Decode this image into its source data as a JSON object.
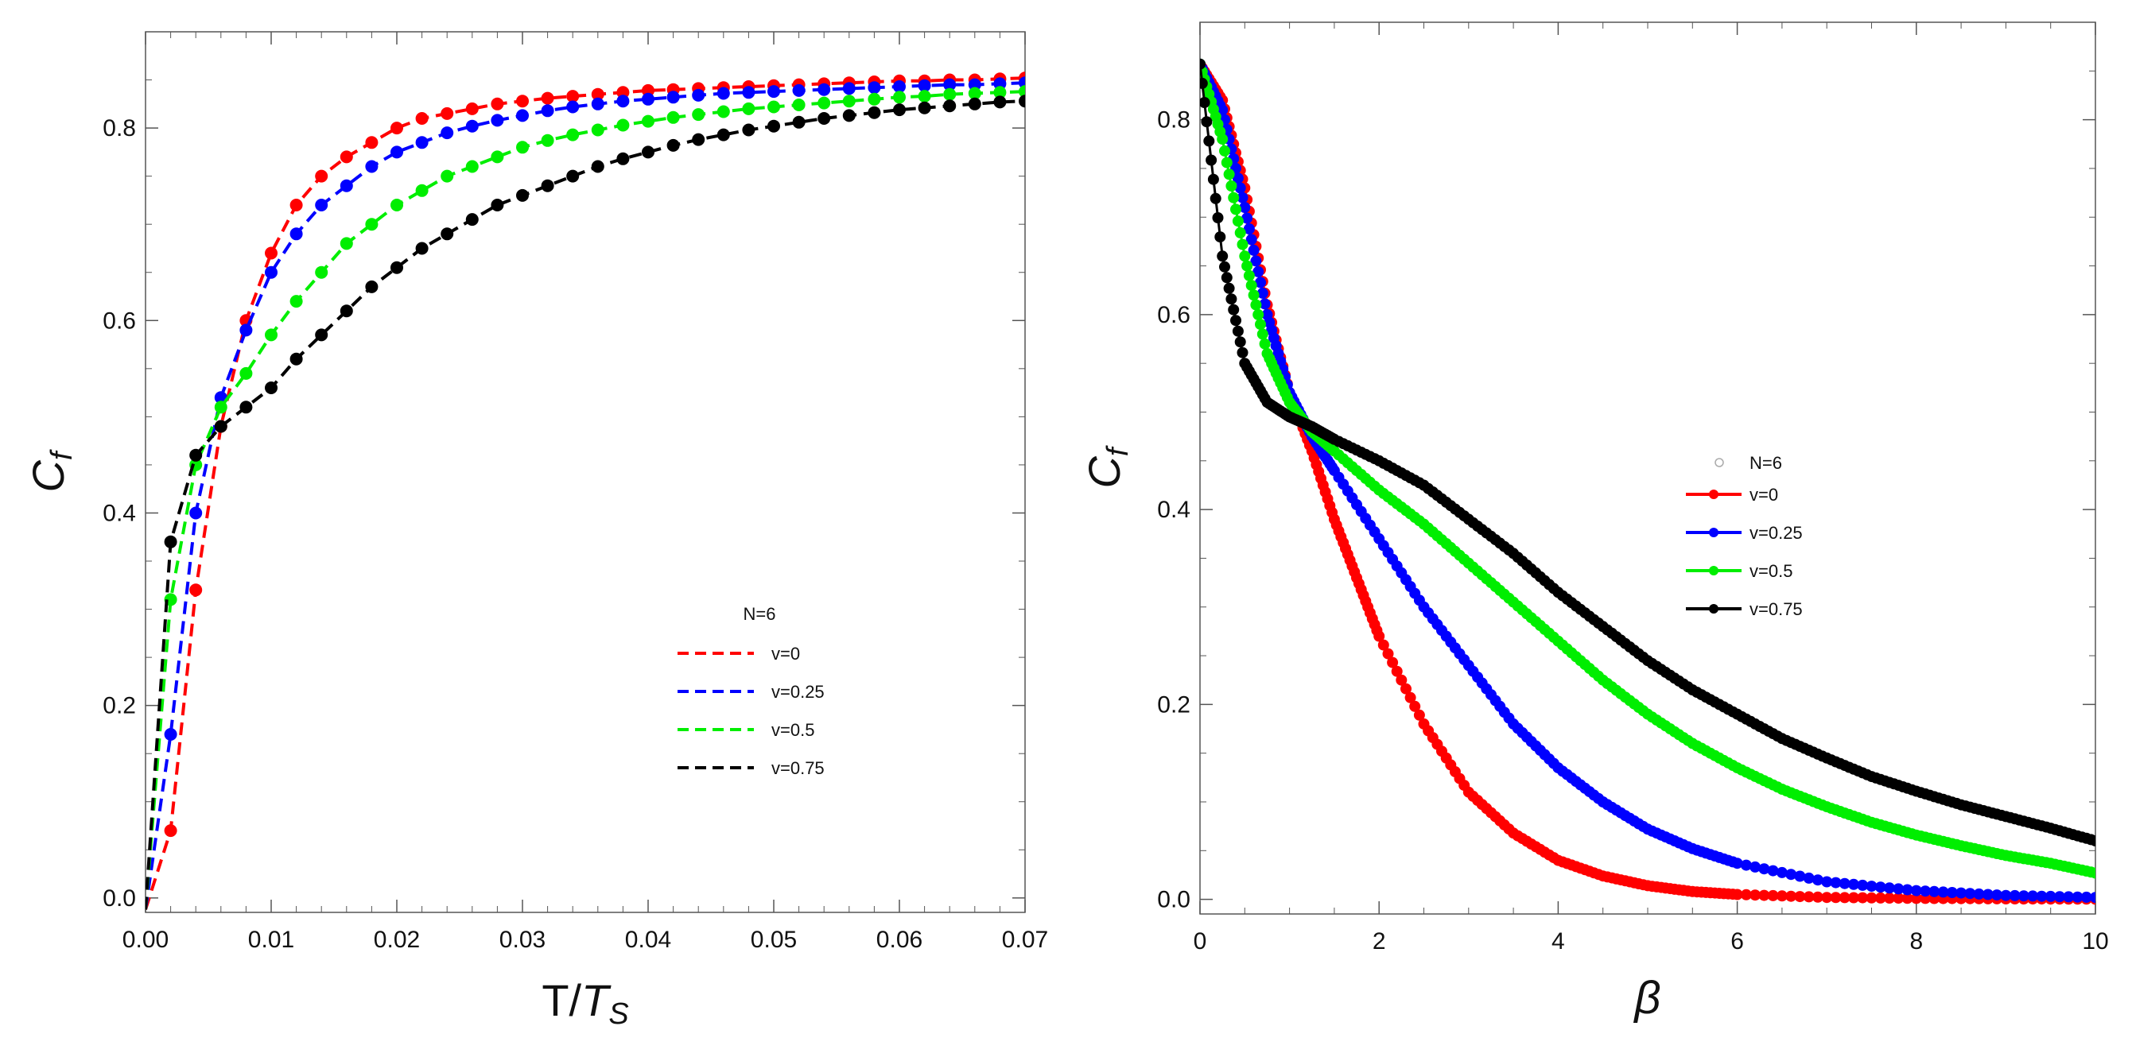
{
  "chart_data": [
    {
      "type": "line",
      "xlabel": "T/T_S",
      "ylabel": "C_f",
      "xlim": [
        0,
        0.07
      ],
      "ylim": [
        -0.015,
        0.9
      ],
      "xticks": [
        "0.00",
        "0.01",
        "0.02",
        "0.03",
        "0.04",
        "0.05",
        "0.06",
        "0.07"
      ],
      "yticks": [
        "0.0",
        "0.2",
        "0.4",
        "0.6",
        "0.8"
      ],
      "legend": {
        "position": "center-right",
        "title": "N=6",
        "entries": [
          "v=0",
          "v=0.25",
          "v=0.5",
          "v=0.75"
        ]
      },
      "line_style": "dashed with markers",
      "series": [
        {
          "name": "v=0",
          "color": "#ff0000",
          "x": [
            0.002,
            0.004,
            0.006,
            0.008,
            0.01,
            0.012,
            0.014,
            0.016,
            0.018,
            0.02,
            0.022,
            0.024,
            0.026,
            0.028,
            0.03,
            0.032,
            0.034,
            0.036,
            0.038,
            0.04,
            0.042,
            0.044,
            0.046,
            0.048,
            0.05,
            0.052,
            0.054,
            0.056,
            0.058,
            0.06,
            0.062,
            0.064,
            0.066,
            0.068,
            0.07
          ],
          "y": [
            0.07,
            0.32,
            0.49,
            0.6,
            0.67,
            0.72,
            0.75,
            0.77,
            0.785,
            0.8,
            0.81,
            0.815,
            0.82,
            0.825,
            0.828,
            0.831,
            0.833,
            0.835,
            0.837,
            0.839,
            0.84,
            0.841,
            0.842,
            0.843,
            0.844,
            0.845,
            0.846,
            0.847,
            0.848,
            0.849,
            0.849,
            0.85,
            0.85,
            0.851,
            0.852
          ]
        },
        {
          "name": "v=0.25",
          "color": "#0000ff",
          "x": [
            0.002,
            0.004,
            0.006,
            0.008,
            0.01,
            0.012,
            0.014,
            0.016,
            0.018,
            0.02,
            0.022,
            0.024,
            0.026,
            0.028,
            0.03,
            0.032,
            0.034,
            0.036,
            0.038,
            0.04,
            0.042,
            0.044,
            0.046,
            0.048,
            0.05,
            0.052,
            0.054,
            0.056,
            0.058,
            0.06,
            0.062,
            0.064,
            0.066,
            0.068,
            0.07
          ],
          "y": [
            0.17,
            0.4,
            0.52,
            0.59,
            0.65,
            0.69,
            0.72,
            0.74,
            0.76,
            0.775,
            0.785,
            0.795,
            0.802,
            0.808,
            0.813,
            0.818,
            0.822,
            0.825,
            0.828,
            0.83,
            0.832,
            0.834,
            0.836,
            0.837,
            0.838,
            0.839,
            0.84,
            0.841,
            0.842,
            0.843,
            0.844,
            0.845,
            0.845,
            0.846,
            0.847
          ]
        },
        {
          "name": "v=0.5",
          "color": "#00ee00",
          "x": [
            0.002,
            0.004,
            0.006,
            0.008,
            0.01,
            0.012,
            0.014,
            0.016,
            0.018,
            0.02,
            0.022,
            0.024,
            0.026,
            0.028,
            0.03,
            0.032,
            0.034,
            0.036,
            0.038,
            0.04,
            0.042,
            0.044,
            0.046,
            0.048,
            0.05,
            0.052,
            0.054,
            0.056,
            0.058,
            0.06,
            0.062,
            0.064,
            0.066,
            0.068,
            0.07
          ],
          "y": [
            0.31,
            0.45,
            0.51,
            0.545,
            0.585,
            0.62,
            0.65,
            0.68,
            0.7,
            0.72,
            0.735,
            0.75,
            0.76,
            0.77,
            0.78,
            0.787,
            0.793,
            0.798,
            0.803,
            0.807,
            0.811,
            0.814,
            0.817,
            0.82,
            0.822,
            0.824,
            0.826,
            0.828,
            0.83,
            0.832,
            0.833,
            0.835,
            0.836,
            0.837,
            0.838
          ]
        },
        {
          "name": "v=0.75",
          "color": "#000000",
          "x": [
            0.002,
            0.004,
            0.006,
            0.008,
            0.01,
            0.012,
            0.014,
            0.016,
            0.018,
            0.02,
            0.022,
            0.024,
            0.026,
            0.028,
            0.03,
            0.032,
            0.034,
            0.036,
            0.038,
            0.04,
            0.042,
            0.044,
            0.046,
            0.048,
            0.05,
            0.052,
            0.054,
            0.056,
            0.058,
            0.06,
            0.062,
            0.064,
            0.066,
            0.068,
            0.07
          ],
          "y": [
            0.37,
            0.46,
            0.49,
            0.51,
            0.53,
            0.56,
            0.585,
            0.61,
            0.635,
            0.655,
            0.675,
            0.69,
            0.705,
            0.72,
            0.73,
            0.74,
            0.75,
            0.76,
            0.768,
            0.775,
            0.782,
            0.788,
            0.793,
            0.798,
            0.802,
            0.806,
            0.81,
            0.813,
            0.816,
            0.819,
            0.821,
            0.823,
            0.825,
            0.827,
            0.828
          ]
        }
      ]
    },
    {
      "type": "line",
      "xlabel": "β",
      "ylabel": "C_f",
      "xlim": [
        0,
        10
      ],
      "ylim": [
        -0.015,
        0.9
      ],
      "xticks": [
        "0",
        "2",
        "4",
        "6",
        "8",
        "10"
      ],
      "yticks": [
        "0.0",
        "0.2",
        "0.4",
        "0.6",
        "0.8"
      ],
      "legend": {
        "position": "center-right",
        "title": "N=6",
        "entries": [
          "v=0",
          "v=0.25",
          "v=0.5",
          "v=0.75"
        ]
      },
      "line_style": "solid with dense markers",
      "series": [
        {
          "name": "v=0",
          "color": "#ff0000",
          "x": [
            0,
            0.25,
            0.5,
            0.75,
            1.0,
            1.25,
            1.5,
            1.75,
            2.0,
            2.5,
            3.0,
            3.5,
            4.0,
            4.5,
            5.0,
            5.5,
            6.0,
            7.0,
            8.0,
            9.0,
            10.0
          ],
          "y": [
            0.857,
            0.82,
            0.73,
            0.61,
            0.52,
            0.46,
            0.39,
            0.33,
            0.27,
            0.18,
            0.11,
            0.068,
            0.04,
            0.024,
            0.014,
            0.008,
            0.005,
            0.002,
            0.001,
            0.0005,
            0.0002
          ]
        },
        {
          "name": "v=0.25",
          "color": "#0000ff",
          "x": [
            0,
            0.25,
            0.5,
            0.75,
            1.0,
            1.25,
            1.5,
            2.0,
            2.5,
            3.0,
            3.5,
            4.0,
            4.5,
            5.0,
            5.5,
            6.0,
            7.0,
            8.0,
            9.0,
            10.0
          ],
          "y": [
            0.857,
            0.81,
            0.71,
            0.6,
            0.52,
            0.475,
            0.44,
            0.37,
            0.3,
            0.24,
            0.18,
            0.135,
            0.1,
            0.072,
            0.052,
            0.037,
            0.018,
            0.009,
            0.004,
            0.002
          ]
        },
        {
          "name": "v=0.5",
          "color": "#00ee00",
          "x": [
            0,
            0.25,
            0.5,
            0.75,
            1.0,
            1.25,
            1.5,
            2.0,
            2.5,
            3.0,
            3.5,
            4.0,
            4.5,
            5.0,
            5.5,
            6.0,
            6.5,
            7.0,
            7.5,
            8.0,
            8.5,
            9.0,
            9.5,
            10.0
          ],
          "y": [
            0.857,
            0.78,
            0.66,
            0.56,
            0.51,
            0.48,
            0.46,
            0.42,
            0.385,
            0.345,
            0.305,
            0.265,
            0.225,
            0.19,
            0.16,
            0.135,
            0.113,
            0.095,
            0.079,
            0.066,
            0.055,
            0.045,
            0.037,
            0.027
          ]
        },
        {
          "name": "v=0.75",
          "color": "#000000",
          "x": [
            0,
            0.25,
            0.5,
            0.75,
            1.0,
            1.25,
            1.5,
            2.0,
            2.5,
            3.0,
            3.5,
            4.0,
            4.5,
            5.0,
            5.5,
            6.0,
            6.5,
            7.0,
            7.5,
            8.0,
            8.5,
            9.0,
            9.5,
            10.0
          ],
          "y": [
            0.857,
            0.66,
            0.55,
            0.51,
            0.495,
            0.485,
            0.472,
            0.45,
            0.425,
            0.39,
            0.355,
            0.315,
            0.28,
            0.245,
            0.215,
            0.19,
            0.165,
            0.145,
            0.126,
            0.111,
            0.097,
            0.085,
            0.073,
            0.06
          ]
        }
      ]
    }
  ]
}
